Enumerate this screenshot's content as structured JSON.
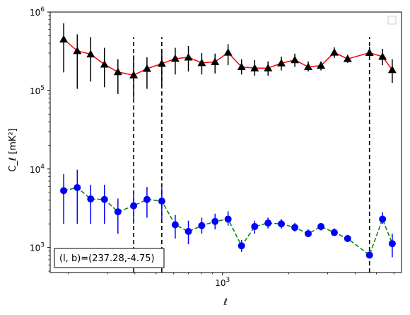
{
  "chart_data": {
    "type": "scatter",
    "title": "",
    "xlabel": "ℓ",
    "ylabel": "C_ℓ  [mK²]",
    "xscale": "log",
    "yscale": "log",
    "xlim": [
      165,
      6500
    ],
    "ylim": [
      480,
      1000000
    ],
    "x_ticks": [
      {
        "value": 1000,
        "base": "10",
        "exp": "3"
      }
    ],
    "y_ticks": [
      {
        "value": 1000,
        "base": "10",
        "exp": "3"
      },
      {
        "value": 10000,
        "base": "10",
        "exp": "4"
      },
      {
        "value": 100000,
        "base": "10",
        "exp": "5"
      },
      {
        "value": 1000000,
        "base": "10",
        "exp": "6"
      }
    ],
    "grid": false,
    "legend": {
      "placement": "top-right",
      "entries": []
    },
    "vlines": [
      {
        "x": 395,
        "ymin": 480,
        "ymax": 480000,
        "color": "#000000",
        "style": "dashed"
      },
      {
        "x": 530,
        "ymin": 480,
        "ymax": 480000,
        "color": "#000000",
        "style": "dashed"
      },
      {
        "x": 4650,
        "ymin": 480,
        "ymax": 480000,
        "color": "#000000",
        "style": "dashed"
      }
    ],
    "annotation": {
      "text": "(l, b)=(237.28,-4.75)",
      "placement": "bottom-left"
    },
    "series": [
      {
        "marker": "triangle",
        "marker_color": "#000000",
        "errorbar_color": "#000000",
        "line_color": "#ff0000",
        "line_style": "solid",
        "points": [
          {
            "x": 190,
            "y": 450000,
            "ylo": 170000,
            "yhi": 720000
          },
          {
            "x": 219,
            "y": 320000,
            "ylo": 105000,
            "yhi": 520000
          },
          {
            "x": 252,
            "y": 290000,
            "ylo": 130000,
            "yhi": 480000
          },
          {
            "x": 291,
            "y": 215000,
            "ylo": 110000,
            "yhi": 350000
          },
          {
            "x": 335,
            "y": 172000,
            "ylo": 90000,
            "yhi": 250000
          },
          {
            "x": 395,
            "y": 157000,
            "ylo": 80000,
            "yhi": 280000
          },
          {
            "x": 454,
            "y": 190000,
            "ylo": 105000,
            "yhi": 265000
          },
          {
            "x": 530,
            "y": 220000,
            "ylo": 115000,
            "yhi": 320000
          },
          {
            "x": 610,
            "y": 255000,
            "ylo": 160000,
            "yhi": 350000
          },
          {
            "x": 700,
            "y": 265000,
            "ylo": 175000,
            "yhi": 370000
          },
          {
            "x": 805,
            "y": 225000,
            "ylo": 160000,
            "yhi": 300000
          },
          {
            "x": 925,
            "y": 232000,
            "ylo": 165000,
            "yhi": 295000
          },
          {
            "x": 1060,
            "y": 305000,
            "ylo": 210000,
            "yhi": 390000
          },
          {
            "x": 1220,
            "y": 200000,
            "ylo": 160000,
            "yhi": 250000
          },
          {
            "x": 1400,
            "y": 193000,
            "ylo": 155000,
            "yhi": 245000
          },
          {
            "x": 1610,
            "y": 193000,
            "ylo": 155000,
            "yhi": 235000
          },
          {
            "x": 1850,
            "y": 223000,
            "ylo": 180000,
            "yhi": 270000
          },
          {
            "x": 2130,
            "y": 245000,
            "ylo": 200000,
            "yhi": 295000
          },
          {
            "x": 2450,
            "y": 200000,
            "ylo": 175000,
            "yhi": 235000
          },
          {
            "x": 2800,
            "y": 208000,
            "ylo": 180000,
            "yhi": 235000
          },
          {
            "x": 3220,
            "y": 305000,
            "ylo": 260000,
            "yhi": 355000
          },
          {
            "x": 3700,
            "y": 253000,
            "ylo": 225000,
            "yhi": 285000
          },
          {
            "x": 4650,
            "y": 303000,
            "ylo": 260000,
            "yhi": 360000
          },
          {
            "x": 5330,
            "y": 270000,
            "ylo": 210000,
            "yhi": 340000
          },
          {
            "x": 5900,
            "y": 183000,
            "ylo": 125000,
            "yhi": 250000
          }
        ]
      },
      {
        "marker": "circle",
        "marker_color": "#0000ff",
        "errorbar_color": "#0000ff",
        "line_color": "#008000",
        "line_style": "dashed",
        "points": [
          {
            "x": 190,
            "y": 5300,
            "ylo": 2000,
            "yhi": 8600
          },
          {
            "x": 219,
            "y": 5800,
            "ylo": 2000,
            "yhi": 9800
          },
          {
            "x": 252,
            "y": 4150,
            "ylo": 2000,
            "yhi": 6300
          },
          {
            "x": 291,
            "y": 4100,
            "ylo": 2000,
            "yhi": 6300
          },
          {
            "x": 335,
            "y": 2850,
            "ylo": 1500,
            "yhi": 4200
          },
          {
            "x": 395,
            "y": 3400,
            "ylo": 2000,
            "yhi": 4700
          },
          {
            "x": 454,
            "y": 4100,
            "ylo": 2400,
            "yhi": 5900
          },
          {
            "x": 530,
            "y": 3900,
            "ylo": 2300,
            "yhi": 5700
          },
          {
            "x": 610,
            "y": 1950,
            "ylo": 1300,
            "yhi": 2600
          },
          {
            "x": 700,
            "y": 1600,
            "ylo": 1100,
            "yhi": 2200
          },
          {
            "x": 805,
            "y": 1900,
            "ylo": 1500,
            "yhi": 2400
          },
          {
            "x": 925,
            "y": 2150,
            "ylo": 1700,
            "yhi": 2700
          },
          {
            "x": 1060,
            "y": 2300,
            "ylo": 1900,
            "yhi": 2900
          },
          {
            "x": 1220,
            "y": 1050,
            "ylo": 880,
            "yhi": 1250
          },
          {
            "x": 1400,
            "y": 1850,
            "ylo": 1500,
            "yhi": 2200
          },
          {
            "x": 1610,
            "y": 2050,
            "ylo": 1750,
            "yhi": 2400
          },
          {
            "x": 1850,
            "y": 2000,
            "ylo": 1750,
            "yhi": 2300
          },
          {
            "x": 2130,
            "y": 1800,
            "ylo": 1600,
            "yhi": 2050
          },
          {
            "x": 2450,
            "y": 1500,
            "ylo": 1350,
            "yhi": 1700
          },
          {
            "x": 2800,
            "y": 1850,
            "ylo": 1650,
            "yhi": 2050
          },
          {
            "x": 3220,
            "y": 1550,
            "ylo": 1400,
            "yhi": 1750
          },
          {
            "x": 3700,
            "y": 1300,
            "ylo": 1180,
            "yhi": 1450
          },
          {
            "x": 4650,
            "y": 800,
            "ylo": 730,
            "yhi": 880
          },
          {
            "x": 5330,
            "y": 2300,
            "ylo": 2000,
            "yhi": 2800
          },
          {
            "x": 5900,
            "y": 1120,
            "ylo": 750,
            "yhi": 1500
          }
        ]
      }
    ]
  }
}
